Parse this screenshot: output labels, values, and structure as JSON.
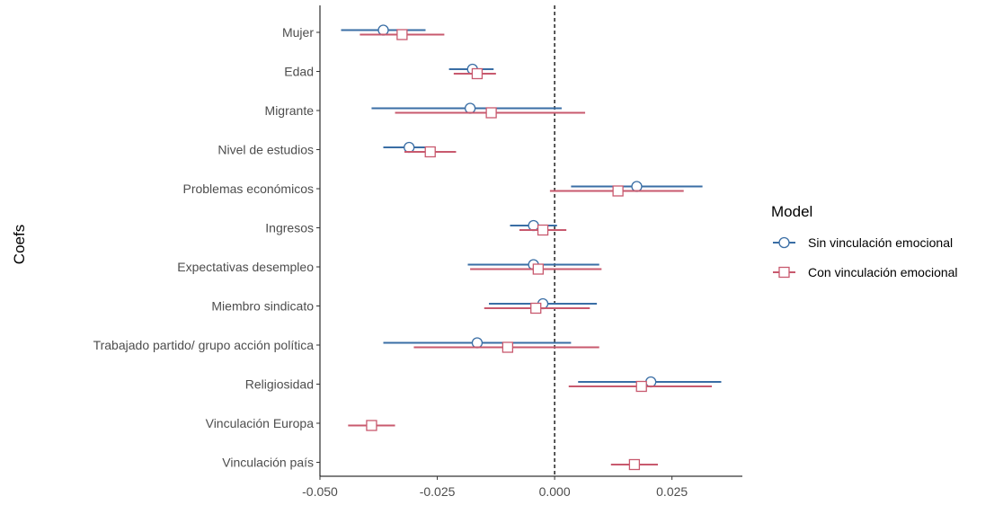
{
  "chart_data": {
    "type": "coefficient-plot",
    "title": "",
    "xlabel": "",
    "ylabel": "Coefs",
    "xlim": [
      -0.05,
      0.04
    ],
    "x_ticks": [
      -0.05,
      -0.025,
      0.0,
      0.025
    ],
    "x_tick_labels": [
      "-0.050",
      "-0.025",
      "0.000",
      "0.025"
    ],
    "reference_line_x": 0,
    "grid": false,
    "legend_position": "right",
    "legend_title": "Model",
    "categories": [
      "Mujer",
      "Edad",
      "Migrante",
      "Nivel de estudios",
      "Problemas económicos",
      "Ingresos",
      "Expectativas desempleo",
      "Miembro sindicato",
      "Trabajado partido/ grupo acción política",
      "Religiosidad",
      "Vinculación Europa",
      "Vinculación país"
    ],
    "series": [
      {
        "name": "Sin vinculación emocional",
        "color": "#3a6ea5",
        "marker": "circle",
        "estimates": [
          -0.0365,
          -0.0175,
          -0.018,
          -0.031,
          0.0175,
          -0.0045,
          -0.0045,
          -0.0025,
          -0.0165,
          0.0205,
          null,
          null
        ],
        "lower": [
          -0.0455,
          -0.0225,
          -0.039,
          -0.0365,
          0.0035,
          -0.0095,
          -0.0185,
          -0.014,
          -0.0365,
          0.005,
          null,
          null
        ],
        "upper": [
          -0.0275,
          -0.013,
          0.0015,
          -0.026,
          0.0315,
          0.0005,
          0.0095,
          0.009,
          0.0035,
          0.0355,
          null,
          null
        ]
      },
      {
        "name": "Con vinculación emocional",
        "color": "#c8596e",
        "marker": "square",
        "estimates": [
          -0.0325,
          -0.0165,
          -0.0135,
          -0.0265,
          0.0135,
          -0.0025,
          -0.0035,
          -0.004,
          -0.01,
          0.0185,
          -0.039,
          0.017
        ],
        "lower": [
          -0.0415,
          -0.0215,
          -0.034,
          -0.032,
          -0.001,
          -0.0075,
          -0.018,
          -0.015,
          -0.03,
          0.003,
          -0.044,
          0.012
        ],
        "upper": [
          -0.0235,
          -0.0125,
          0.0065,
          -0.021,
          0.0275,
          0.0025,
          0.01,
          0.0075,
          0.0095,
          0.0335,
          -0.034,
          0.022
        ]
      }
    ]
  }
}
